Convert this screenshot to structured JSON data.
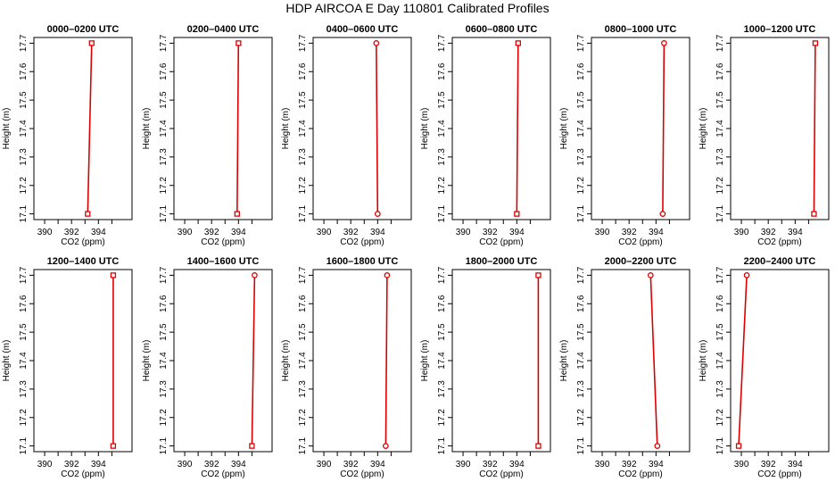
{
  "title": "HDP AIRCOA E  Day 110801  Calibrated Profiles",
  "colors": {
    "profile": "#dd0000",
    "axis": "#000000",
    "background": "#ffffff"
  },
  "axes": {
    "xlabel": "CO2 (ppm)",
    "ylabel": "Height (m)",
    "xlim": [
      389.2,
      396.5
    ],
    "ylim": [
      17.08,
      17.72
    ],
    "xticks": [
      390,
      391,
      392,
      393,
      394,
      395
    ],
    "xtick_labels": [
      "390",
      "392",
      "394"
    ],
    "yticks": [
      17.1,
      17.2,
      17.3,
      17.4,
      17.5,
      17.6,
      17.7
    ],
    "ytick_labels": [
      "17.1",
      "17.2",
      "17.3",
      "17.4",
      "17.5",
      "17.6",
      "17.7"
    ],
    "grid": false
  },
  "chart_data": [
    {
      "type": "line",
      "title": "0000–0200 UTC",
      "x": [
        393.2,
        393.5
      ],
      "y": [
        17.1,
        17.7
      ],
      "marker": "square"
    },
    {
      "type": "line",
      "title": "0200–0400 UTC",
      "x": [
        393.9,
        394.0
      ],
      "y": [
        17.1,
        17.7
      ],
      "marker": "square"
    },
    {
      "type": "line",
      "title": "0400–0600 UTC",
      "x": [
        394.0,
        393.9
      ],
      "y": [
        17.1,
        17.7
      ],
      "marker": "circle"
    },
    {
      "type": "line",
      "title": "0600–0800 UTC",
      "x": [
        394.0,
        394.1
      ],
      "y": [
        17.1,
        17.7
      ],
      "marker": "square"
    },
    {
      "type": "line",
      "title": "0800–1000 UTC",
      "x": [
        394.5,
        394.6
      ],
      "y": [
        17.1,
        17.7
      ],
      "marker": "circle"
    },
    {
      "type": "line",
      "title": "1000–1200 UTC",
      "x": [
        395.4,
        395.5
      ],
      "y": [
        17.1,
        17.7
      ],
      "marker": "square"
    },
    {
      "type": "line",
      "title": "1200–1400 UTC",
      "x": [
        395.1,
        395.1
      ],
      "y": [
        17.1,
        17.7
      ],
      "marker": "square"
    },
    {
      "type": "line",
      "title": "1400–1600 UTC",
      "x": [
        395.0,
        395.2
      ],
      "y": [
        17.1,
        17.7
      ],
      "marker": "mixed"
    },
    {
      "type": "line",
      "title": "1600–1800 UTC",
      "x": [
        394.6,
        394.7
      ],
      "y": [
        17.1,
        17.7
      ],
      "marker": "circle"
    },
    {
      "type": "line",
      "title": "1800–2000 UTC",
      "x": [
        395.6,
        395.6
      ],
      "y": [
        17.1,
        17.7
      ],
      "marker": "square"
    },
    {
      "type": "line",
      "title": "2000–2200 UTC",
      "x": [
        394.1,
        393.6
      ],
      "y": [
        17.1,
        17.7
      ],
      "marker": "circle"
    },
    {
      "type": "line",
      "title": "2200–2400 UTC",
      "x": [
        389.8,
        390.4
      ],
      "y": [
        17.1,
        17.7
      ],
      "marker": "mixed"
    }
  ]
}
